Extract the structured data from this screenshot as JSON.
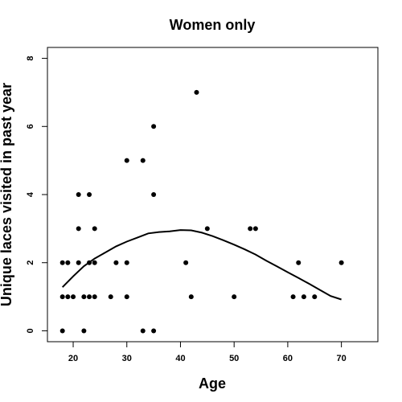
{
  "chart_data": {
    "type": "scatter",
    "title": "Women only",
    "xlabel": "Age",
    "ylabel": "Unique laces visited in past year",
    "xlim": [
      15.2,
      76.8
    ],
    "ylim": [
      -0.32,
      8.32
    ],
    "xticks": [
      "20",
      "30",
      "40",
      "50",
      "60",
      "70"
    ],
    "yticks": [
      "0",
      "2",
      "4",
      "6",
      "8"
    ],
    "grid": false,
    "point_color": "#000000",
    "series": [
      {
        "kind": "points",
        "x": [
          18,
          18,
          18,
          19,
          19,
          20,
          21,
          21,
          21,
          22,
          22,
          23,
          23,
          23,
          24,
          24,
          24,
          27,
          28,
          30,
          30,
          30,
          33,
          33,
          35,
          35,
          35,
          41,
          42,
          43,
          45,
          50,
          53,
          54,
          61,
          62,
          63,
          65,
          70
        ],
        "y": [
          0,
          1,
          2,
          1,
          2,
          1,
          2,
          3,
          4,
          0,
          1,
          1,
          2,
          4,
          1,
          2,
          3,
          1,
          2,
          1,
          2,
          5,
          0,
          5,
          0,
          4,
          6,
          2,
          1,
          7,
          3,
          1,
          3,
          3,
          1,
          2,
          1,
          1,
          2
        ]
      },
      {
        "kind": "smooth-line",
        "x": [
          18,
          20,
          22,
          24,
          26,
          28,
          30,
          32,
          34,
          36,
          38,
          40,
          42,
          44,
          46,
          48,
          50,
          52,
          54,
          56,
          58,
          60,
          62,
          64,
          66,
          68,
          70
        ],
        "y": [
          1.28,
          1.6,
          1.9,
          2.12,
          2.3,
          2.48,
          2.62,
          2.74,
          2.86,
          2.9,
          2.92,
          2.96,
          2.95,
          2.88,
          2.78,
          2.66,
          2.53,
          2.39,
          2.24,
          2.06,
          1.89,
          1.72,
          1.55,
          1.38,
          1.2,
          1.02,
          0.92
        ]
      }
    ]
  }
}
